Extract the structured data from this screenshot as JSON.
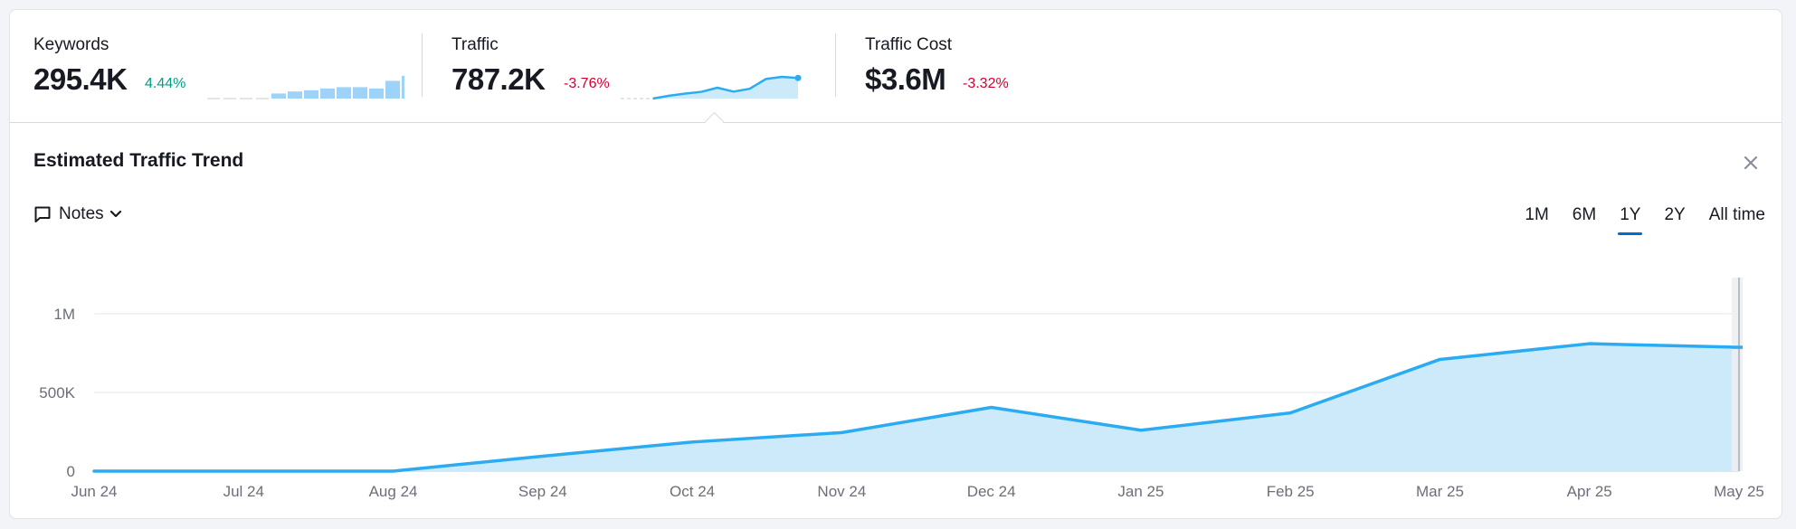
{
  "metrics": [
    {
      "label": "Keywords",
      "value": "295.4K",
      "change": "4.44%",
      "change_color": "#009f81",
      "mini": "bar",
      "mini_values": [
        0,
        0,
        0,
        0,
        0.2,
        0.28,
        0.33,
        0.4,
        0.45,
        0.45,
        0.4,
        0.7,
        0.9,
        1.0
      ]
    },
    {
      "label": "Traffic",
      "value": "787.2K",
      "change": "-3.76%",
      "change_color": "#d1002f",
      "mini": "area",
      "mini_values": [
        0,
        0,
        0,
        0.13,
        0.23,
        0.31,
        0.5,
        0.32,
        0.45,
        0.9,
        1.0,
        0.95
      ]
    },
    {
      "label": "Traffic Cost",
      "value": "$3.6M",
      "change": "-3.32%",
      "change_color": "#d1002f"
    }
  ],
  "panel": {
    "title": "Estimated Traffic Trend",
    "close_icon": "close-icon",
    "notes_label": "Notes",
    "ranges": [
      "1M",
      "6M",
      "1Y",
      "2Y",
      "All time"
    ],
    "active_range": "1Y"
  },
  "colors": {
    "accent": "#2aabf2",
    "fill": "#cdeafb",
    "active_tab": "#006dca"
  },
  "chart_data": {
    "type": "area",
    "categories": [
      "Jun 24",
      "Jul 24",
      "Aug 24",
      "Sep 24",
      "Oct 24",
      "Nov 24",
      "Dec 24",
      "Jan 25",
      "Feb 25",
      "Mar 25",
      "Apr 25",
      "May 25"
    ],
    "values": [
      0,
      0,
      0,
      95000,
      185000,
      245000,
      405000,
      260000,
      370000,
      710000,
      810000,
      787200
    ],
    "y_ticks": [
      0,
      500000,
      1000000
    ],
    "y_tick_labels": [
      "0",
      "500K",
      "1M"
    ],
    "ylim": [
      0,
      1000000
    ],
    "grid": true
  }
}
